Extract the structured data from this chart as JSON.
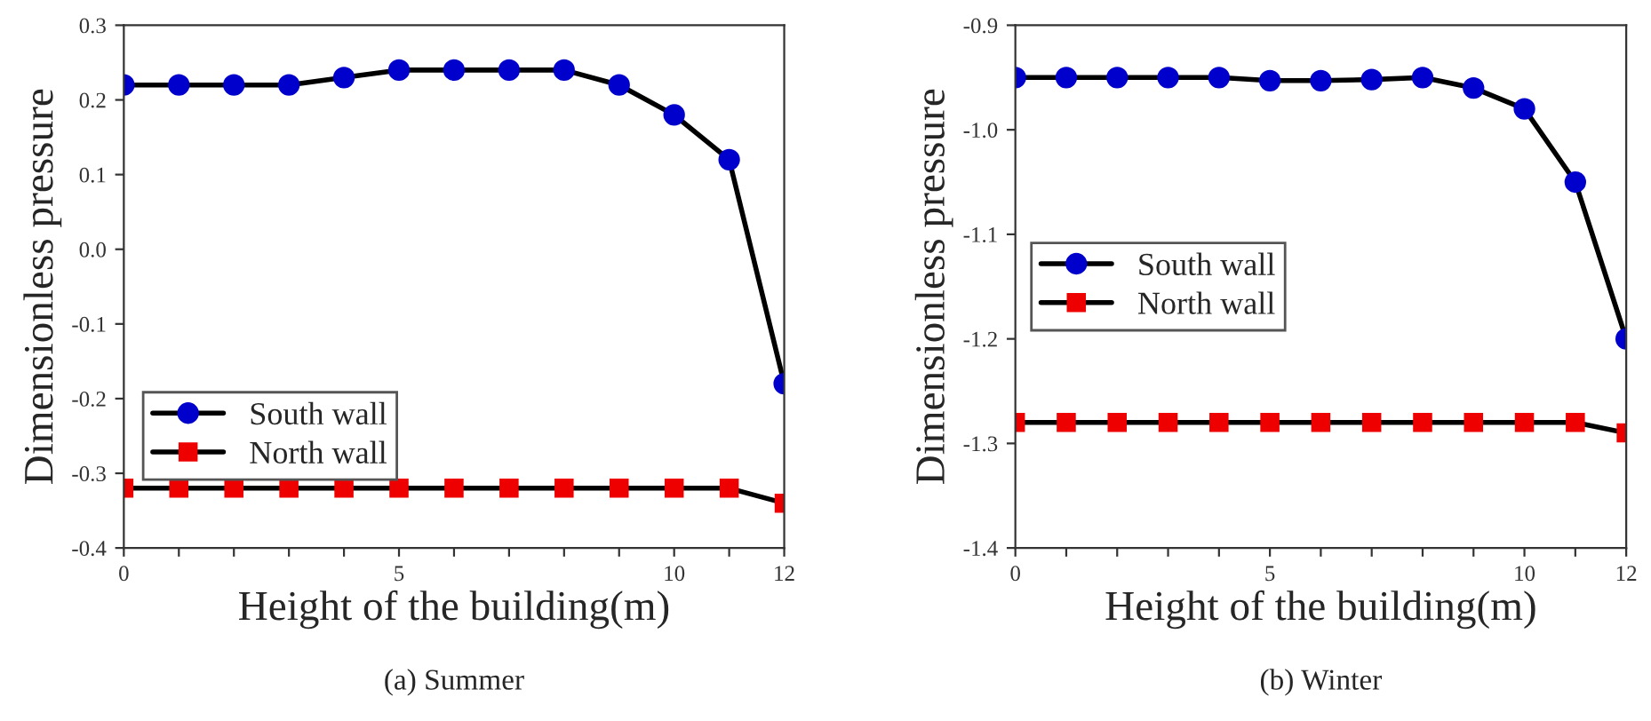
{
  "chart_data": [
    {
      "type": "line",
      "title": "(a) Summer",
      "xlabel": "Height of the building(m)",
      "ylabel": "Dimensionless pressure",
      "x": [
        0,
        1,
        2,
        3,
        4,
        5,
        6,
        7,
        8,
        9,
        10,
        11,
        12
      ],
      "series": [
        {
          "name": "South wall",
          "color": "#0000cc",
          "marker": "circle",
          "values": [
            0.22,
            0.22,
            0.22,
            0.22,
            0.23,
            0.24,
            0.24,
            0.24,
            0.24,
            0.22,
            0.18,
            0.12,
            -0.18
          ]
        },
        {
          "name": "North wall",
          "color": "#ee0000",
          "marker": "square",
          "values": [
            -0.32,
            -0.32,
            -0.32,
            -0.32,
            -0.32,
            -0.32,
            -0.32,
            -0.32,
            -0.32,
            -0.32,
            -0.32,
            -0.32,
            -0.34
          ]
        }
      ],
      "xlim": [
        0,
        12
      ],
      "ylim": [
        -0.4,
        0.3
      ],
      "xticks": [
        0,
        {
          "value": 1,
          "label": null
        },
        {
          "value": 2,
          "label": null
        },
        {
          "value": 3,
          "label": null
        },
        {
          "value": 4,
          "label": null
        },
        5,
        {
          "value": 6,
          "label": null
        },
        {
          "value": 7,
          "label": null
        },
        {
          "value": 8,
          "label": null
        },
        {
          "value": 9,
          "label": null
        },
        10,
        {
          "value": 11,
          "label": null
        },
        12
      ],
      "yticks": [
        {
          "value": -0.4,
          "label": "-0.4"
        },
        {
          "value": -0.3,
          "label": "-0.3"
        },
        {
          "value": -0.2,
          "label": "-0.2"
        },
        {
          "value": -0.1,
          "label": "-0.1"
        },
        {
          "value": 0.0,
          "label": "0.0"
        },
        0.1,
        0.2,
        0.3
      ],
      "legend": "bottom left",
      "grid": false
    },
    {
      "type": "line",
      "title": "(b) Winter",
      "xlabel": "Height of the building(m)",
      "ylabel": "Dimensionless pressure",
      "x": [
        0,
        1,
        2,
        3,
        4,
        5,
        6,
        7,
        8,
        9,
        10,
        11,
        12
      ],
      "series": [
        {
          "name": "South wall",
          "color": "#0000cc",
          "marker": "circle",
          "values": [
            -0.95,
            -0.95,
            -0.95,
            -0.95,
            -0.95,
            -0.953,
            -0.953,
            -0.952,
            -0.95,
            -0.96,
            -0.98,
            -1.05,
            -1.2
          ]
        },
        {
          "name": "North wall",
          "color": "#ee0000",
          "marker": "square",
          "values": [
            -1.28,
            -1.28,
            -1.28,
            -1.28,
            -1.28,
            -1.28,
            -1.28,
            -1.28,
            -1.28,
            -1.28,
            -1.28,
            -1.28,
            -1.29
          ]
        }
      ],
      "xlim": [
        0,
        12
      ],
      "ylim": [
        -1.4,
        -0.9
      ],
      "xticks": [
        0,
        {
          "value": 1,
          "label": null
        },
        {
          "value": 2,
          "label": null
        },
        {
          "value": 3,
          "label": null
        },
        {
          "value": 4,
          "label": null
        },
        5,
        {
          "value": 6,
          "label": null
        },
        {
          "value": 7,
          "label": null
        },
        {
          "value": 8,
          "label": null
        },
        {
          "value": 9,
          "label": null
        },
        10,
        {
          "value": 11,
          "label": null
        },
        12
      ],
      "yticks": [
        {
          "value": -1.4,
          "label": "-1.4"
        },
        {
          "value": -1.3,
          "label": "-1.3"
        },
        {
          "value": -1.2,
          "label": "-1.2"
        },
        {
          "value": -1.1,
          "label": "-1.1"
        },
        {
          "value": -1.0,
          "label": "-1.0"
        },
        {
          "value": -0.9,
          "label": "-0.9"
        }
      ],
      "legend": "left",
      "grid": false
    }
  ]
}
